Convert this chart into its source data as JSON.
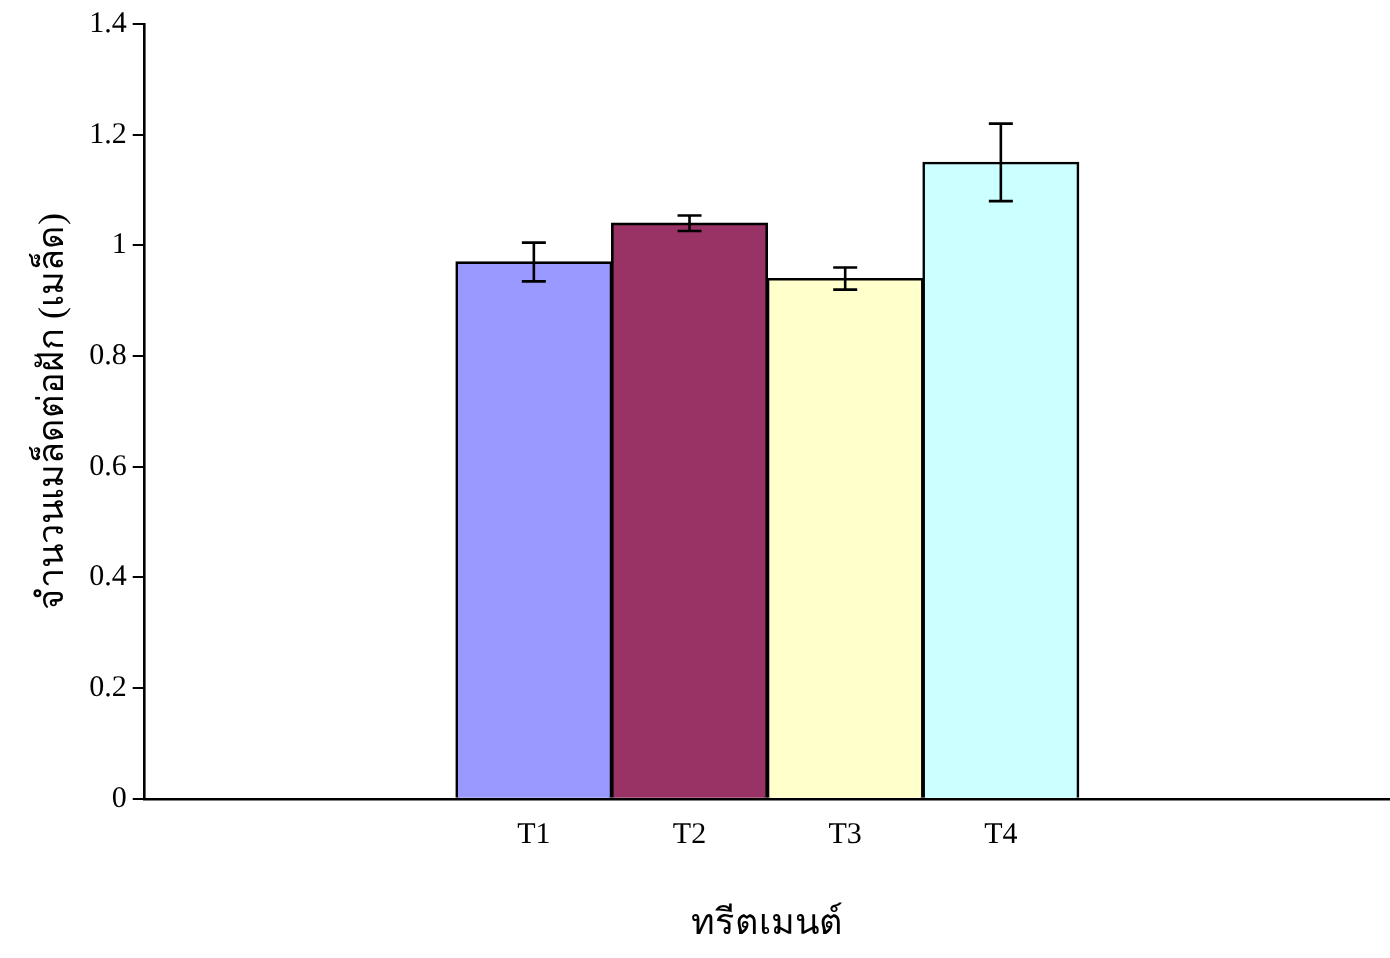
{
  "chart_data": {
    "type": "bar",
    "xlabel": "ทรีตเมนต์",
    "ylabel": "จำนวนเมล็ดต่อฝัก (เมล็ด)",
    "categories": [
      null,
      null,
      "T1",
      "T2",
      "T3",
      "T4",
      null,
      null
    ],
    "values": [
      null,
      null,
      0.97,
      1.04,
      0.94,
      1.15,
      null,
      null
    ],
    "errors": [
      null,
      null,
      0.035,
      0.014,
      0.02,
      0.07,
      null,
      null
    ],
    "colors": [
      null,
      null,
      "#9999ff",
      "#993366",
      "#ffffcc",
      "#ccffff",
      null,
      null
    ],
    "ylim": [
      0,
      1.4
    ],
    "yticks": [
      0,
      0.2,
      0.4,
      0.6,
      0.8,
      1,
      1.2,
      1.4
    ],
    "grid": false,
    "legend": false
  }
}
